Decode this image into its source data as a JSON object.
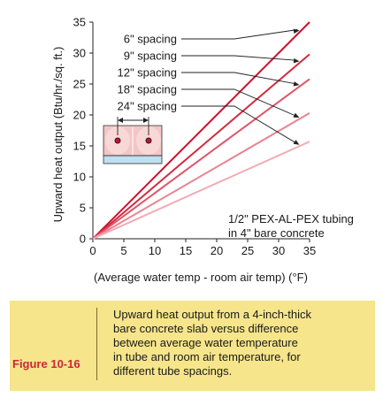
{
  "chart_data": {
    "type": "line",
    "xlabel": "(Average water temp - room air temp) (°F)",
    "ylabel": "Upward heat output (Btu/hr./sq. ft.)",
    "xlim": [
      0,
      35
    ],
    "ylim": [
      0,
      35
    ],
    "x_ticks": [
      "0",
      "5",
      "10",
      "15",
      "20",
      "25",
      "30",
      "35"
    ],
    "y_ticks": [
      "0",
      "5",
      "10",
      "15",
      "20",
      "25",
      "30",
      "35"
    ],
    "grid": false,
    "series": [
      {
        "name": "6\"  spacing",
        "color": "#c8102e",
        "x": [
          0,
          35
        ],
        "y": [
          0,
          35.0
        ]
      },
      {
        "name": "9\"  spacing",
        "color": "#d42a3f",
        "x": [
          0,
          35
        ],
        "y": [
          0,
          29.8
        ]
      },
      {
        "name": "12\"  spacing",
        "color": "#e05568",
        "x": [
          0,
          35
        ],
        "y": [
          0,
          25.8
        ]
      },
      {
        "name": "18\"  spacing",
        "color": "#ea8391",
        "x": [
          0,
          35
        ],
        "y": [
          0,
          20.3
        ]
      },
      {
        "name": "24\"  spacing",
        "color": "#f2aab4",
        "x": [
          0,
          35
        ],
        "y": [
          0,
          15.7
        ]
      }
    ],
    "annotation": [
      "1/2\" PEX-AL-PEX tubing",
      "in 4\" bare concrete"
    ]
  },
  "caption": {
    "figure_label": "Figure 10-16",
    "lines": [
      "Upward heat output from a 4-inch-thick",
      "bare concrete slab versus difference",
      "between average water temperature",
      "in tube and room air temperature, for",
      "different tube spacings."
    ]
  },
  "colors": {
    "caption_background": "#f6e58a",
    "figure_label": "#c9283a",
    "slab": "#f3c6c6",
    "insulation": "#bfe0ef"
  }
}
